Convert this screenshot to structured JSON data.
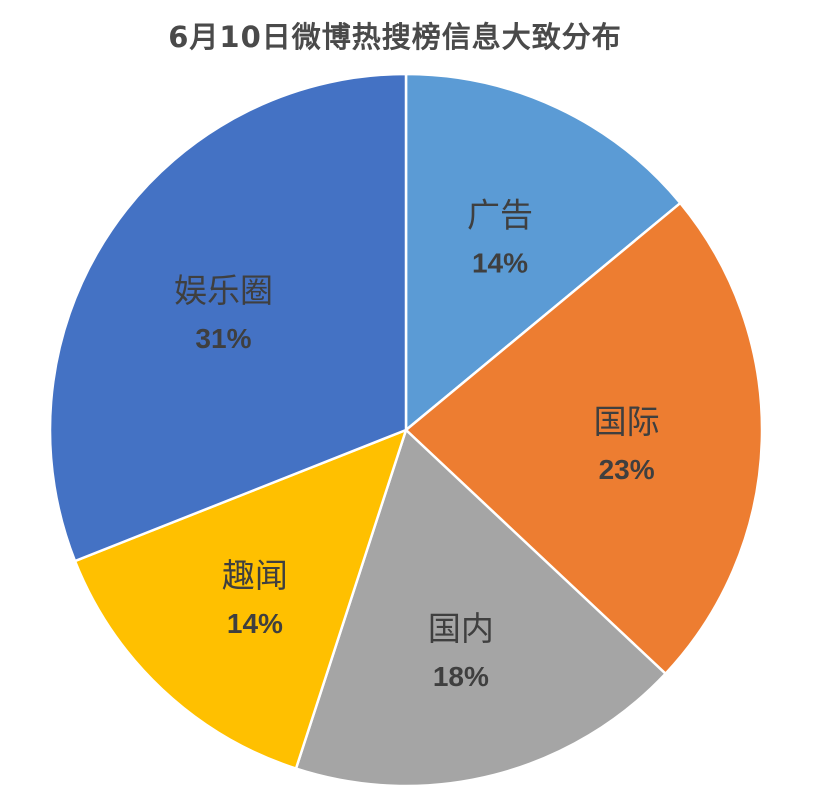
{
  "chart_data": {
    "type": "pie",
    "title": "6月10日微博热搜榜信息大致分布",
    "slices": [
      {
        "label": "广告",
        "value": 14,
        "pct_label": "14%",
        "color": "#5b9bd5"
      },
      {
        "label": "国际",
        "value": 23,
        "pct_label": "23%",
        "color": "#ed7d31"
      },
      {
        "label": "国内",
        "value": 18,
        "pct_label": "18%",
        "color": "#a5a5a5"
      },
      {
        "label": "趣闻",
        "value": 14,
        "pct_label": "14%",
        "color": "#ffc000"
      },
      {
        "label": "娱乐圈",
        "value": 31,
        "pct_label": "31%",
        "color": "#4472c4"
      }
    ],
    "start_angle_deg": 0,
    "direction": "clockwise",
    "legend": "none"
  }
}
